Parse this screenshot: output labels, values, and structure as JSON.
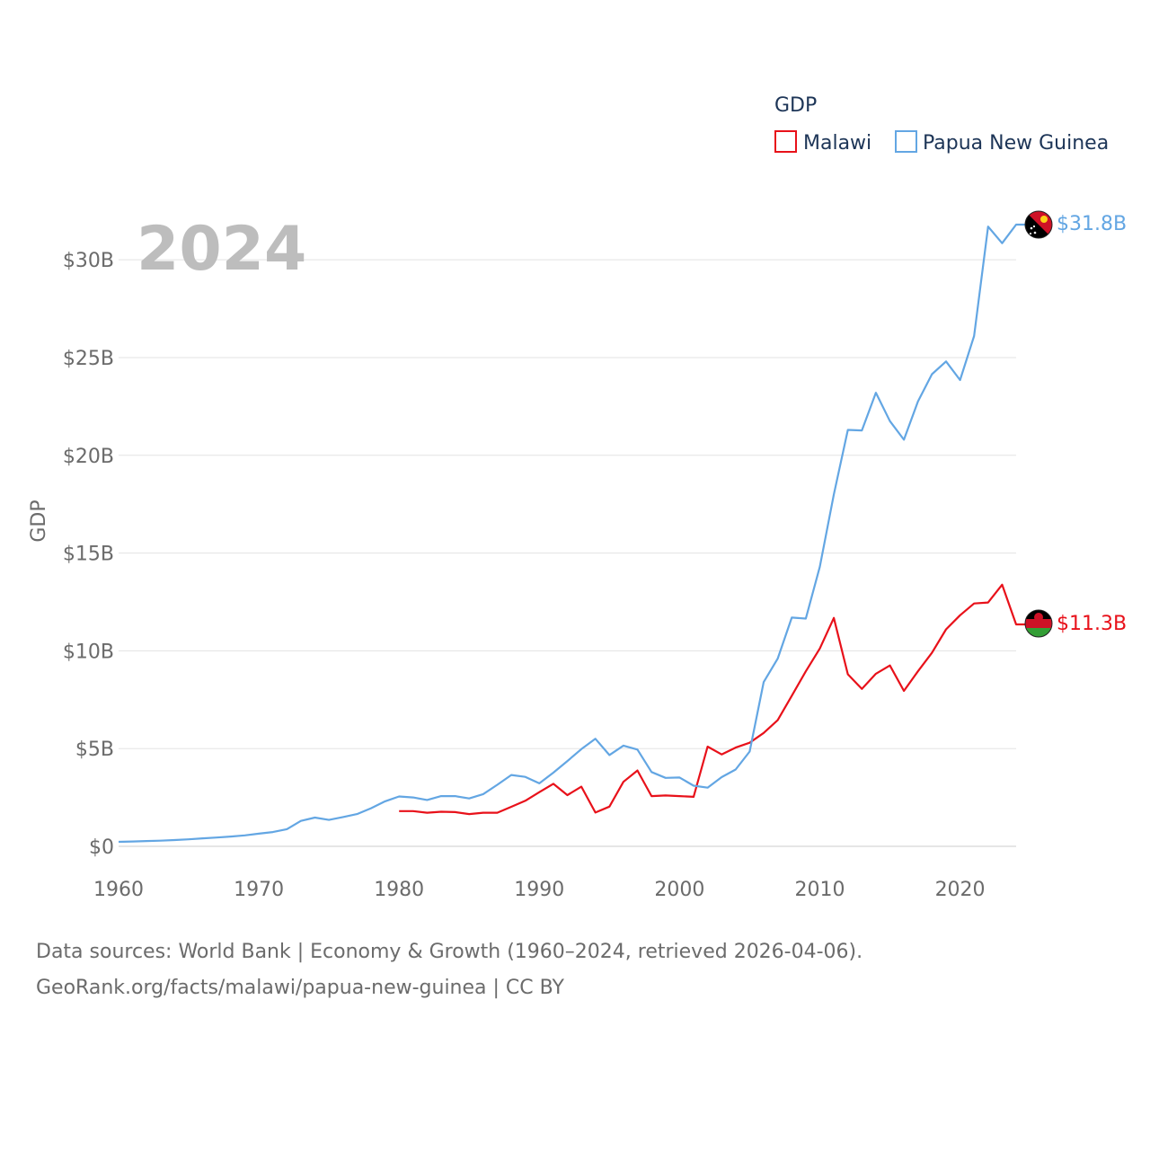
{
  "chart_data": {
    "type": "line",
    "title": "",
    "year_label": "2024",
    "legend_title": "GDP",
    "legend_placement": "top-right",
    "xlabel": "",
    "ylabel": "GDP",
    "xlim": [
      1960,
      2024
    ],
    "ylim": [
      0,
      32
    ],
    "x_ticks": [
      1960,
      1970,
      1980,
      1990,
      2000,
      2010,
      2020
    ],
    "y_ticks": [
      {
        "value": 0,
        "label": "$0"
      },
      {
        "value": 5,
        "label": "$5B"
      },
      {
        "value": 10,
        "label": "$10B"
      },
      {
        "value": 15,
        "label": "$15B"
      },
      {
        "value": 20,
        "label": "$20B"
      },
      {
        "value": 25,
        "label": "$25B"
      },
      {
        "value": 30,
        "label": "$30B"
      }
    ],
    "grid": true,
    "series": [
      {
        "name": "Malawi",
        "color": "#e8111a",
        "end_label": "$11.3B",
        "flag": "malawi-flag",
        "points": [
          [
            1980,
            1.8
          ],
          [
            1981,
            1.8
          ],
          [
            1982,
            1.72
          ],
          [
            1983,
            1.77
          ],
          [
            1984,
            1.75
          ],
          [
            1985,
            1.65
          ],
          [
            1986,
            1.72
          ],
          [
            1987,
            1.72
          ],
          [
            1988,
            2.02
          ],
          [
            1989,
            2.33
          ],
          [
            1990,
            2.77
          ],
          [
            1991,
            3.2
          ],
          [
            1992,
            2.62
          ],
          [
            1993,
            3.05
          ],
          [
            1994,
            1.73
          ],
          [
            1995,
            2.03
          ],
          [
            1996,
            3.3
          ],
          [
            1997,
            3.88
          ],
          [
            1998,
            2.57
          ],
          [
            1999,
            2.6
          ],
          [
            2000,
            2.57
          ],
          [
            2001,
            2.53
          ],
          [
            2002,
            5.1
          ],
          [
            2003,
            4.7
          ],
          [
            2004,
            5.05
          ],
          [
            2005,
            5.3
          ],
          [
            2006,
            5.8
          ],
          [
            2007,
            6.45
          ],
          [
            2008,
            7.7
          ],
          [
            2009,
            8.95
          ],
          [
            2010,
            10.12
          ],
          [
            2011,
            11.68
          ],
          [
            2012,
            8.8
          ],
          [
            2013,
            8.05
          ],
          [
            2014,
            8.83
          ],
          [
            2015,
            9.25
          ],
          [
            2016,
            7.95
          ],
          [
            2017,
            8.95
          ],
          [
            2018,
            9.9
          ],
          [
            2019,
            11.1
          ],
          [
            2020,
            11.82
          ],
          [
            2021,
            12.42
          ],
          [
            2022,
            12.47
          ],
          [
            2023,
            13.38
          ],
          [
            2024,
            11.35
          ]
        ]
      },
      {
        "name": "Papua New Guinea",
        "color": "#63a6e3",
        "end_label": "$31.8B",
        "flag": "papua-new-guinea-flag",
        "points": [
          [
            1960,
            0.23
          ],
          [
            1961,
            0.25
          ],
          [
            1962,
            0.27
          ],
          [
            1963,
            0.29
          ],
          [
            1964,
            0.32
          ],
          [
            1965,
            0.36
          ],
          [
            1966,
            0.41
          ],
          [
            1967,
            0.45
          ],
          [
            1968,
            0.5
          ],
          [
            1969,
            0.56
          ],
          [
            1970,
            0.65
          ],
          [
            1971,
            0.73
          ],
          [
            1972,
            0.88
          ],
          [
            1973,
            1.3
          ],
          [
            1974,
            1.47
          ],
          [
            1975,
            1.35
          ],
          [
            1976,
            1.5
          ],
          [
            1977,
            1.65
          ],
          [
            1978,
            1.95
          ],
          [
            1979,
            2.3
          ],
          [
            1980,
            2.55
          ],
          [
            1981,
            2.5
          ],
          [
            1982,
            2.37
          ],
          [
            1983,
            2.57
          ],
          [
            1984,
            2.57
          ],
          [
            1985,
            2.45
          ],
          [
            1986,
            2.67
          ],
          [
            1987,
            3.15
          ],
          [
            1988,
            3.65
          ],
          [
            1989,
            3.55
          ],
          [
            1990,
            3.22
          ],
          [
            1991,
            3.77
          ],
          [
            1992,
            4.36
          ],
          [
            1993,
            4.97
          ],
          [
            1994,
            5.5
          ],
          [
            1995,
            4.67
          ],
          [
            1996,
            5.15
          ],
          [
            1997,
            4.95
          ],
          [
            1998,
            3.8
          ],
          [
            1999,
            3.5
          ],
          [
            2000,
            3.52
          ],
          [
            2001,
            3.1
          ],
          [
            2002,
            3.0
          ],
          [
            2003,
            3.54
          ],
          [
            2004,
            3.93
          ],
          [
            2005,
            4.85
          ],
          [
            2006,
            8.4
          ],
          [
            2007,
            9.6
          ],
          [
            2008,
            11.7
          ],
          [
            2009,
            11.65
          ],
          [
            2010,
            14.3
          ],
          [
            2011,
            18.0
          ],
          [
            2012,
            21.3
          ],
          [
            2013,
            21.27
          ],
          [
            2014,
            23.2
          ],
          [
            2015,
            21.75
          ],
          [
            2016,
            20.8
          ],
          [
            2017,
            22.75
          ],
          [
            2018,
            24.15
          ],
          [
            2019,
            24.8
          ],
          [
            2020,
            23.85
          ],
          [
            2021,
            26.1
          ],
          [
            2022,
            31.7
          ],
          [
            2023,
            30.85
          ],
          [
            2024,
            31.8
          ]
        ]
      }
    ]
  },
  "footer": {
    "line1": "Data sources: World Bank | Economy & Growth (1960–2024, retrieved 2026-04-06).",
    "line2": "GeoRank.org/facts/malawi/papua-new-guinea | CC BY"
  }
}
